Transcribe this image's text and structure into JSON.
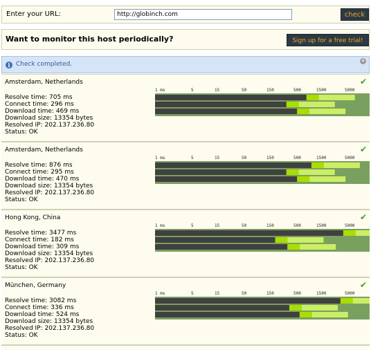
{
  "url_form": {
    "label": "Enter your URL:",
    "value": "http://globinch.com",
    "check_label": "check"
  },
  "monitor": {
    "text": "Want to monitor this host periodically?",
    "signup_label": "Sign up for a free trial!"
  },
  "notice": {
    "text": "Check completed."
  },
  "tick_labels": [
    "1 ms",
    "5",
    "15",
    "50",
    "150",
    "500",
    "1500",
    "5000"
  ],
  "colors": {
    "bar_dark": "#404040",
    "bar_lime": "#aadd00",
    "bar_pale": "#ccee66",
    "chart_bg": "#7aa060",
    "button_bg": "#2b3a44",
    "button_text": "#f6a623",
    "check_icon": "#3e9b2f"
  },
  "results": [
    {
      "location": "Amsterdam, Netherlands",
      "resolve_time": "Resolve time: 705 ms",
      "connect_time": "Connect time: 296 ms",
      "download_time": "Download time: 469 ms",
      "download_size": "Download size: 13354 bytes",
      "resolved_ip": "Resolved IP: 202.137.236.80",
      "status": "Status: OK",
      "resolve_ms": 705,
      "connect_ms": 296,
      "download_ms": 469
    },
    {
      "location": "Amsterdam, Netherlands",
      "resolve_time": "Resolve time: 876 ms",
      "connect_time": "Connect time: 295 ms",
      "download_time": "Download time: 470 ms",
      "download_size": "Download size: 13354 bytes",
      "resolved_ip": "Resolved IP: 202.137.236.80",
      "status": "Status: OK",
      "resolve_ms": 876,
      "connect_ms": 295,
      "download_ms": 470
    },
    {
      "location": "Hong Kong, China",
      "resolve_time": "Resolve time: 3477 ms",
      "connect_time": "Connect time: 182 ms",
      "download_time": "Download time: 309 ms",
      "download_size": "Download size: 13354 bytes",
      "resolved_ip": "Resolved IP: 202.137.236.80",
      "status": "Status: OK",
      "resolve_ms": 3477,
      "connect_ms": 182,
      "download_ms": 309
    },
    {
      "location": "München, Germany",
      "resolve_time": "Resolve time: 3082 ms",
      "connect_time": "Connect time: 336 ms",
      "download_time": "Download time: 524 ms",
      "download_size": "Download size: 13354 bytes",
      "resolved_ip": "Resolved IP: 202.137.236.80",
      "status": "Status: OK",
      "resolve_ms": 3082,
      "connect_ms": 336,
      "download_ms": 524
    }
  ]
}
